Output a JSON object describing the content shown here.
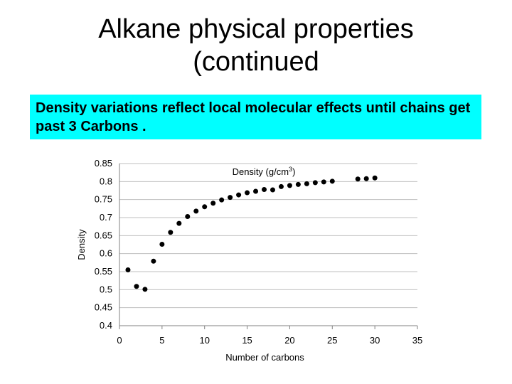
{
  "slide": {
    "title_line1": "Alkane physical properties",
    "title_line2": "(continued",
    "callout": "Density variations reflect local molecular effects until chains get past 3 Carbons ."
  },
  "chart_data": {
    "type": "scatter",
    "title": "Density (g/cm",
    "title_superscript": "3",
    "title_suffix": ")",
    "xlabel": "Number of carbons",
    "ylabel": "Density",
    "xlim": [
      0,
      35
    ],
    "ylim": [
      0.4,
      0.85
    ],
    "x_ticks": [
      "0",
      "5",
      "10",
      "15",
      "20",
      "25",
      "30",
      "35"
    ],
    "y_ticks": [
      "0.4",
      "0.45",
      "0.5",
      "0.55",
      "0.6",
      "0.65",
      "0.7",
      "0.75",
      "0.8",
      "0.85"
    ],
    "grid": "horizontal",
    "marker_color": "#000000",
    "series": [
      {
        "x": [
          1,
          2,
          3,
          4,
          5,
          6,
          7,
          8,
          9,
          10,
          11,
          12,
          13,
          14,
          15,
          16,
          17,
          18,
          19,
          20,
          21,
          22,
          23,
          24,
          25,
          28,
          29,
          30
        ],
        "y": [
          0.555,
          0.509,
          0.501,
          0.579,
          0.626,
          0.659,
          0.684,
          0.703,
          0.718,
          0.73,
          0.74,
          0.749,
          0.756,
          0.763,
          0.769,
          0.773,
          0.778,
          0.777,
          0.786,
          0.789,
          0.792,
          0.794,
          0.797,
          0.799,
          0.801,
          0.807,
          0.808,
          0.81
        ]
      }
    ]
  }
}
